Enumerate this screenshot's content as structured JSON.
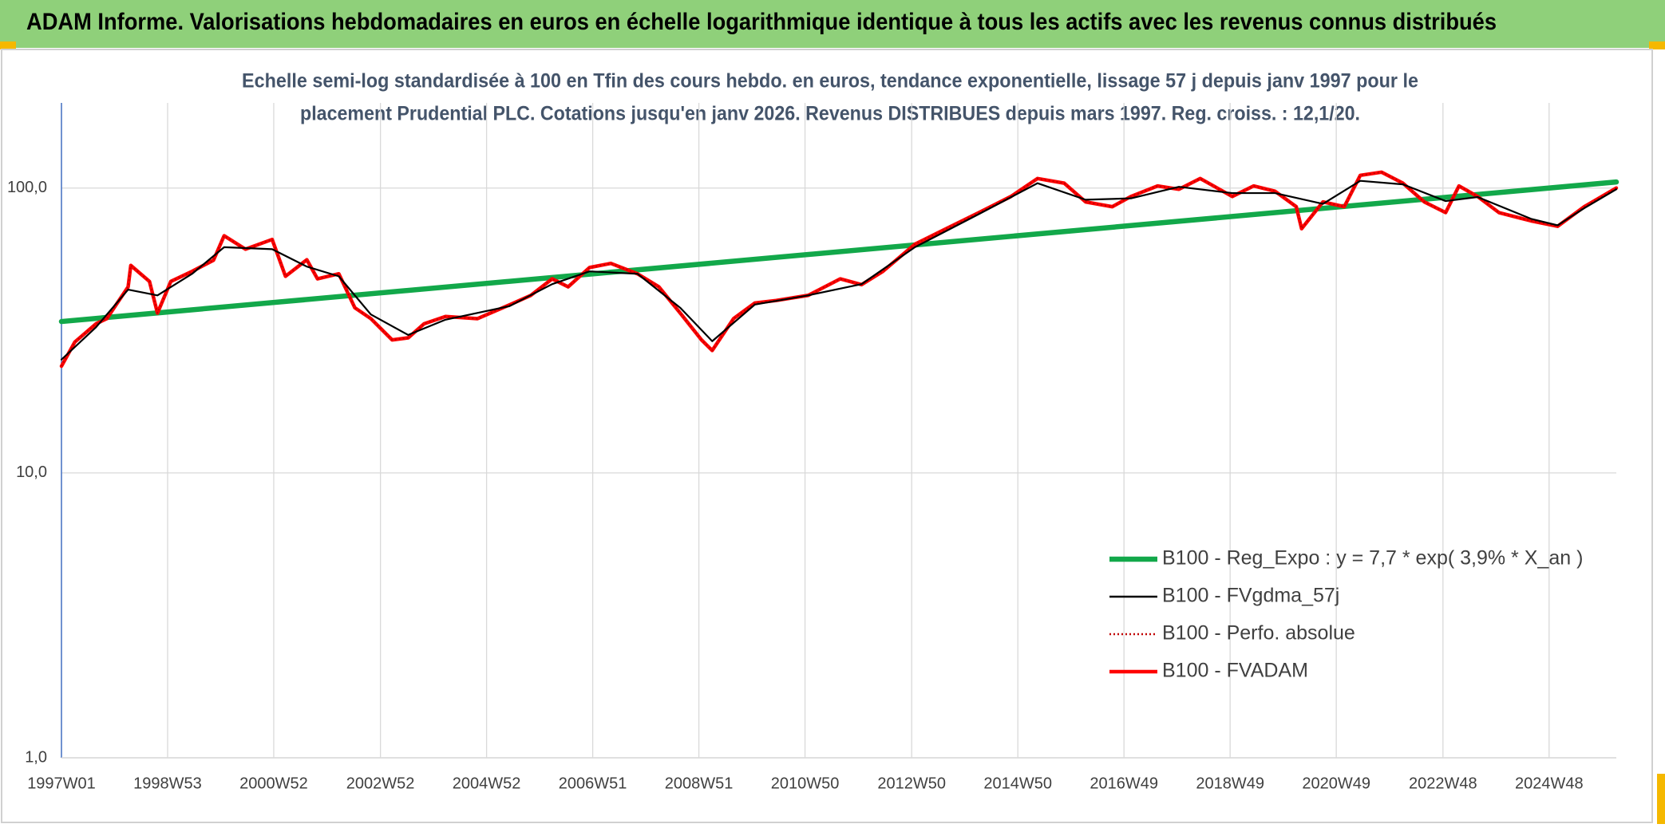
{
  "header": {
    "title": "ADAM Informe. Valorisations hebdomadaires en euros en échelle logarithmique identique à tous les actifs avec les revenus connus distribués"
  },
  "chart_data": {
    "type": "line",
    "subtitle": [
      "Echelle semi-log standardisée à 100 en Tfin des cours hebdo. en euros, tendance exponentielle, lissage 57 j depuis janv 1997 pour le",
      "placement Prudential PLC. Cotations jusqu'en janv 2026. Revenus DISTRIBUES depuis mars 1997. Reg. croiss. : 12,1/20."
    ],
    "log_y": true,
    "grid": true,
    "legend_position": "lower right",
    "xlim": [
      1997,
      2026.15
    ],
    "ylim": [
      1,
      199
    ],
    "yticks": [
      {
        "value": 1,
        "label": "1,0"
      },
      {
        "value": 10,
        "label": "10,0"
      },
      {
        "value": 100,
        "label": "100,0"
      }
    ],
    "xticks": [
      {
        "value": 1997,
        "label": "1997W01"
      },
      {
        "value": 1998.99,
        "label": "1998W53"
      },
      {
        "value": 2000.98,
        "label": "2000W52"
      },
      {
        "value": 2002.98,
        "label": "2002W52"
      },
      {
        "value": 2004.97,
        "label": "2004W52"
      },
      {
        "value": 2006.96,
        "label": "2006W51"
      },
      {
        "value": 2008.95,
        "label": "2008W51"
      },
      {
        "value": 2010.94,
        "label": "2010W50"
      },
      {
        "value": 2012.94,
        "label": "2012W50"
      },
      {
        "value": 2014.93,
        "label": "2014W50"
      },
      {
        "value": 2016.92,
        "label": "2016W49"
      },
      {
        "value": 2018.91,
        "label": "2018W49"
      },
      {
        "value": 2020.9,
        "label": "2020W49"
      },
      {
        "value": 2022.9,
        "label": "2022W48"
      },
      {
        "value": 2024.89,
        "label": "2024W48"
      }
    ],
    "series": [
      {
        "name": "B100 - Reg_Expo : y = 7,7 * exp( 3,9% *  X_an )",
        "color": "#12a84a",
        "line_style": "solid",
        "x": [
          1997,
          2026.15
        ],
        "values": [
          34,
          105
        ]
      },
      {
        "name": "B100 - FVgdma_57j",
        "color": "#000000",
        "line_style": "solid",
        "x": [
          1997,
          1997.65,
          1998.25,
          1998.8,
          1999.45,
          2000.05,
          2000.95,
          2001.6,
          2002.2,
          2002.8,
          2003.5,
          2004.2,
          2005.4,
          2006.2,
          2006.9,
          2007.8,
          2008.6,
          2009.2,
          2010,
          2011,
          2012,
          2013,
          2014.2,
          2015.3,
          2016.2,
          2017.05,
          2017.95,
          2018.95,
          2019.75,
          2020.65,
          2021.35,
          2022.15,
          2022.95,
          2023.55,
          2024.55,
          2025.05,
          2025.55,
          2026.15
        ],
        "values": [
          25,
          32.5,
          44,
          42,
          50,
          62,
          61,
          53,
          49,
          36,
          30.5,
          34.5,
          38.5,
          46,
          51,
          50,
          38,
          29,
          39,
          42,
          46,
          62,
          81,
          104,
          91,
          92,
          101,
          96,
          96,
          88,
          106,
          103,
          90,
          93,
          78,
          74,
          85,
          99
        ]
      },
      {
        "name": "B100 - Perfo. absolue",
        "color": "#c00000",
        "line_style": "dotted",
        "x": [
          1997,
          1997.25,
          1997.65,
          1997.85,
          1998.25,
          1998.3,
          1998.65,
          1998.8,
          1999.05,
          1999.45,
          1999.85,
          2000.05,
          2000.45,
          2000.95,
          2001.2,
          2001.6,
          2001.8,
          2002.2,
          2002.5,
          2002.8,
          2003.2,
          2003.5,
          2003.8,
          2004.2,
          2004.8,
          2005.4,
          2005.8,
          2006.2,
          2006.5,
          2006.9,
          2007.3,
          2007.8,
          2008.2,
          2008.6,
          2009,
          2009.2,
          2009.6,
          2010,
          2010.4,
          2011,
          2011.6,
          2012,
          2012.4,
          2013,
          2013.6,
          2014.2,
          2014.8,
          2015.3,
          2015.8,
          2016.2,
          2016.7,
          2017.05,
          2017.55,
          2017.95,
          2018.35,
          2018.95,
          2019.35,
          2019.75,
          2020.15,
          2020.25,
          2020.65,
          2021.05,
          2021.35,
          2021.75,
          2022.15,
          2022.55,
          2022.95,
          2023.2,
          2023.55,
          2023.95,
          2024.55,
          2025.05,
          2025.55,
          2026.15
        ],
        "values": [
          23.7,
          28.8,
          33.4,
          34.8,
          45,
          53.5,
          47,
          36.4,
          47,
          51,
          55.8,
          68,
          61,
          66,
          49,
          56,
          48,
          50,
          38,
          34.8,
          29.3,
          29.8,
          33.4,
          35.4,
          34.8,
          38.9,
          42,
          48,
          45,
          52.6,
          54.4,
          50,
          45,
          36.4,
          29.3,
          26.9,
          34.8,
          39.5,
          40.3,
          42,
          48,
          45.8,
          51,
          63.5,
          72.2,
          82,
          93.4,
          108,
          104,
          89.4,
          86,
          93.4,
          101.7,
          99,
          108,
          93.4,
          101.7,
          97.5,
          86,
          72,
          89.4,
          86,
          110.8,
          113.7,
          104,
          89.4,
          82,
          101.7,
          93.4,
          82,
          76.7,
          73.4,
          86,
          100
        ]
      },
      {
        "name": "B100 - FVADAM",
        "color": "#ff0000",
        "line_style": "solid",
        "x": [
          1997,
          1997.25,
          1997.65,
          1997.85,
          1998.25,
          1998.3,
          1998.65,
          1998.8,
          1999.05,
          1999.45,
          1999.85,
          2000.05,
          2000.45,
          2000.95,
          2001.2,
          2001.6,
          2001.8,
          2002.2,
          2002.5,
          2002.8,
          2003.2,
          2003.5,
          2003.8,
          2004.2,
          2004.8,
          2005.4,
          2005.8,
          2006.2,
          2006.5,
          2006.9,
          2007.3,
          2007.8,
          2008.2,
          2008.6,
          2009,
          2009.2,
          2009.6,
          2010,
          2010.4,
          2011,
          2011.6,
          2012,
          2012.4,
          2013,
          2013.6,
          2014.2,
          2014.8,
          2015.3,
          2015.8,
          2016.2,
          2016.7,
          2017.05,
          2017.55,
          2017.95,
          2018.35,
          2018.95,
          2019.35,
          2019.75,
          2020.15,
          2020.25,
          2020.65,
          2021.05,
          2021.35,
          2021.75,
          2022.15,
          2022.55,
          2022.95,
          2023.2,
          2023.55,
          2023.95,
          2024.55,
          2025.05,
          2025.55,
          2026.15
        ],
        "values": [
          23.7,
          28.8,
          33.4,
          34.8,
          45,
          53.5,
          47,
          36.4,
          47,
          51,
          55.8,
          68,
          61,
          66,
          49,
          56,
          48,
          50,
          38,
          34.8,
          29.3,
          29.8,
          33.4,
          35.4,
          34.8,
          38.9,
          42,
          48,
          45,
          52.6,
          54.4,
          50,
          45,
          36.4,
          29.3,
          26.9,
          34.8,
          39.5,
          40.3,
          42,
          48,
          45.8,
          51,
          63.5,
          72.2,
          82,
          93.4,
          108,
          104,
          89.4,
          86,
          93.4,
          101.7,
          99,
          108,
          93.4,
          101.7,
          97.5,
          86,
          72,
          89.4,
          86,
          110.8,
          113.7,
          104,
          89.4,
          82,
          101.7,
          93.4,
          82,
          76.7,
          73.4,
          86,
          100
        ]
      }
    ]
  }
}
